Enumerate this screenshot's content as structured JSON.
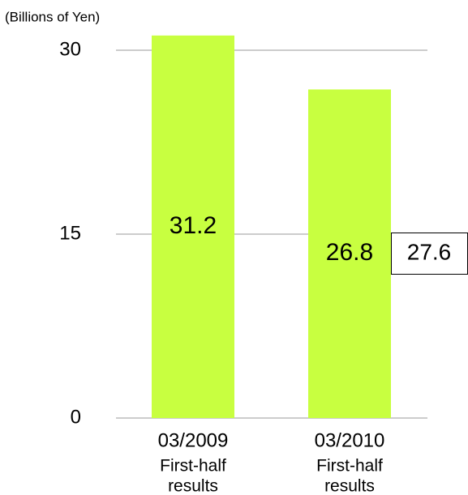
{
  "chart_data": {
    "type": "bar",
    "y_label": "(Billions of Yen)",
    "categories": [
      [
        "03/2009",
        "First-half",
        "results"
      ],
      [
        "03/2010",
        "First-half",
        "results"
      ]
    ],
    "values": [
      31.2,
      26.8
    ],
    "color": "#c8ff40",
    "ylim": [
      0,
      30
    ],
    "yticks": [
      0,
      15,
      30
    ],
    "grid": true,
    "annotations": [
      "27.6"
    ]
  }
}
